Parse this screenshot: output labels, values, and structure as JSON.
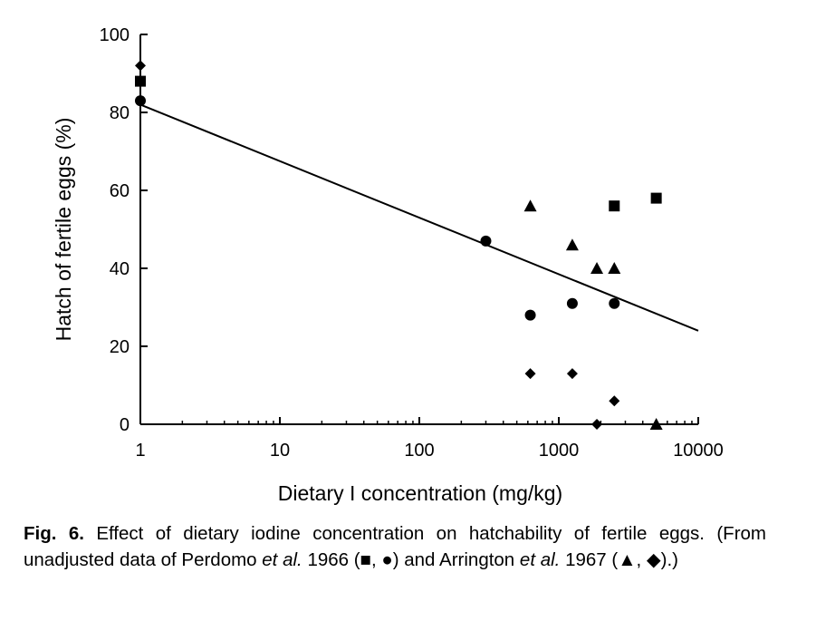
{
  "chart_data": {
    "type": "scatter",
    "xscale": "log",
    "xlabel": "Dietary I concentration (mg/kg)",
    "ylabel": "Hatch of fertile eggs (%)",
    "xlim": [
      1,
      10000
    ],
    "ylim": [
      0,
      100
    ],
    "x_ticks": [
      1,
      10,
      100,
      1000,
      10000
    ],
    "x_tick_labels": [
      "1",
      "10",
      "100",
      "1000",
      "10000"
    ],
    "y_ticks": [
      0,
      20,
      40,
      60,
      80,
      100
    ],
    "y_tick_labels": [
      "0",
      "20",
      "40",
      "60",
      "80",
      "100"
    ],
    "grid": false,
    "series": [
      {
        "marker": "square",
        "x": [
          1,
          2500,
          5000
        ],
        "y": [
          88,
          56,
          58
        ]
      },
      {
        "marker": "circle",
        "x": [
          1,
          300,
          625,
          1250,
          2500
        ],
        "y": [
          83,
          47,
          28,
          31,
          31
        ]
      },
      {
        "marker": "triangle",
        "x": [
          625,
          1250,
          1875,
          2500,
          5000
        ],
        "y": [
          56,
          46,
          40,
          40,
          0
        ]
      },
      {
        "marker": "diamond",
        "x": [
          1,
          625,
          1250,
          1875,
          2500
        ],
        "y": [
          92,
          13,
          13,
          0,
          6
        ]
      }
    ],
    "fit_line": {
      "x": [
        1,
        10000
      ],
      "y": [
        82,
        24
      ]
    }
  },
  "caption": {
    "label": "Fig. 6.",
    "line1": "Effect of dietary iodine concentration on hatchability of fertile",
    "line2_pre": "eggs. (From unadjusted data of Perdomo",
    "etal1": "et al.",
    "line2_post": "1966 (■, ●) and",
    "line3_pre": "Arrington",
    "etal2": "et al.",
    "line3_post": "1967 (▲, ◆).)"
  }
}
